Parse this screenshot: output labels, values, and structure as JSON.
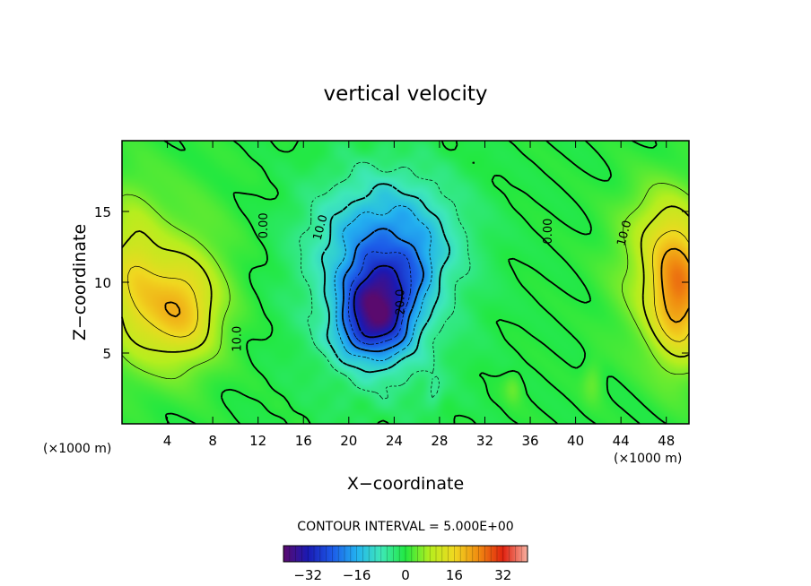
{
  "chart_data": {
    "type": "heatmap",
    "title": "vertical velocity",
    "xlabel": "X−coordinate",
    "ylabel": "Z−coordinate",
    "x_unit": "(×1000 m)",
    "y_unit": "(×1000 m)",
    "xlim": [
      0,
      50
    ],
    "ylim": [
      0,
      20
    ],
    "x_ticks": [
      4,
      8,
      12,
      16,
      20,
      24,
      28,
      32,
      36,
      40,
      44,
      48
    ],
    "y_ticks": [
      5,
      10,
      15
    ],
    "contour_interval_text": "CONTOUR INTERVAL = 5.000E+00",
    "contour_labels": [
      {
        "text": "0.00",
        "x": 12.8,
        "z": 14.0,
        "rotate": -90
      },
      {
        "text": "10.0",
        "x": 17.8,
        "z": 13.8,
        "rotate": -75
      },
      {
        "text": "20.0",
        "x": 24.9,
        "z": 8.6,
        "rotate": -90
      },
      {
        "text": "0.00",
        "x": 37.9,
        "z": 13.6,
        "rotate": -90
      },
      {
        "text": "10.0",
        "x": 44.6,
        "z": 13.4,
        "rotate": -75
      },
      {
        "text": "10.0",
        "x": 10.5,
        "z": 6.0,
        "rotate": -90
      }
    ],
    "field_features": [
      {
        "type": "updraft",
        "x": 1.5,
        "z": 10,
        "value": 22
      },
      {
        "type": "updraft",
        "x": 5,
        "z": 8,
        "value": 16
      },
      {
        "type": "downdraft",
        "x": 22.5,
        "z": 8,
        "value": -30
      },
      {
        "type": "updraft",
        "x": 48.5,
        "z": 9.5,
        "value": 22
      }
    ],
    "colorbar": {
      "range": [
        -40,
        40
      ],
      "tick_values": [
        -32,
        -16,
        0,
        16,
        32
      ],
      "tick_labels": [
        "−32",
        "−16",
        "0",
        "16",
        "32"
      ],
      "colormap": [
        "#5a0a6e",
        "#1a1ab4",
        "#1c5ae8",
        "#23b2f0",
        "#3ee8b8",
        "#22e840",
        "#b6ee1e",
        "#f0d820",
        "#f08a10",
        "#e02210",
        "#f7b0a0"
      ]
    }
  }
}
